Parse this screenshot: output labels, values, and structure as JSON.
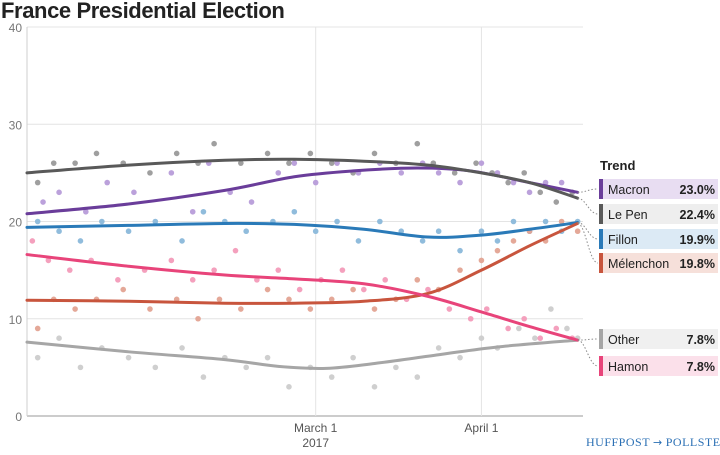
{
  "chart_data": {
    "type": "line",
    "title": "France Presidential Election",
    "ylim": [
      0,
      40
    ],
    "yticks": [
      0,
      10,
      20,
      30,
      40
    ],
    "xlim": [
      "2017-01-06",
      "2017-04-20"
    ],
    "xticks": [
      {
        "date": "2017-03-01",
        "label": "March 1",
        "sublabel": "2017"
      },
      {
        "date": "2017-04-01",
        "label": "April 1",
        "sublabel": ""
      }
    ],
    "legend_title": "Trend",
    "legend_position": "right",
    "series": [
      {
        "name": "Macron",
        "color": "#6a3d9a",
        "dot_color": "#b79cd9",
        "label_bg": "#e8ddf2",
        "value_label": "23.0%",
        "trend": [
          [
            "2017-01-06",
            20.8
          ],
          [
            "2017-01-25",
            21.8
          ],
          [
            "2017-02-12",
            23.2
          ],
          [
            "2017-02-25",
            24.6
          ],
          [
            "2017-03-08",
            25.2
          ],
          [
            "2017-03-20",
            25.5
          ],
          [
            "2017-03-30",
            25.2
          ],
          [
            "2017-04-10",
            24.0
          ],
          [
            "2017-04-19",
            23.0
          ]
        ],
        "points": [
          [
            "2017-01-09",
            22
          ],
          [
            "2017-01-12",
            23
          ],
          [
            "2017-01-17",
            21
          ],
          [
            "2017-01-21",
            24
          ],
          [
            "2017-01-26",
            23
          ],
          [
            "2017-02-02",
            25
          ],
          [
            "2017-02-06",
            21
          ],
          [
            "2017-02-09",
            26
          ],
          [
            "2017-02-13",
            23
          ],
          [
            "2017-02-17",
            22
          ],
          [
            "2017-02-22",
            25
          ],
          [
            "2017-02-25",
            26
          ],
          [
            "2017-03-01",
            24
          ],
          [
            "2017-03-05",
            26
          ],
          [
            "2017-03-09",
            25
          ],
          [
            "2017-03-13",
            26
          ],
          [
            "2017-03-17",
            25
          ],
          [
            "2017-03-21",
            26
          ],
          [
            "2017-03-24",
            25
          ],
          [
            "2017-03-28",
            24
          ],
          [
            "2017-04-01",
            26
          ],
          [
            "2017-04-04",
            25
          ],
          [
            "2017-04-07",
            24
          ],
          [
            "2017-04-10",
            23
          ],
          [
            "2017-04-13",
            24
          ],
          [
            "2017-04-16",
            24
          ],
          [
            "2017-04-18",
            23
          ]
        ]
      },
      {
        "name": "Le Pen",
        "color": "#595959",
        "dot_color": "#9a9a9a",
        "label_bg": "#eeeeee",
        "value_label": "22.4%",
        "trend": [
          [
            "2017-01-06",
            25.0
          ],
          [
            "2017-01-25",
            25.8
          ],
          [
            "2017-02-12",
            26.3
          ],
          [
            "2017-02-25",
            26.4
          ],
          [
            "2017-03-10",
            26.2
          ],
          [
            "2017-03-22",
            25.8
          ],
          [
            "2017-04-01",
            25.0
          ],
          [
            "2017-04-10",
            24.0
          ],
          [
            "2017-04-19",
            22.4
          ]
        ],
        "points": [
          [
            "2017-01-08",
            24
          ],
          [
            "2017-01-11",
            26
          ],
          [
            "2017-01-15",
            26
          ],
          [
            "2017-01-19",
            27
          ],
          [
            "2017-01-24",
            26
          ],
          [
            "2017-01-29",
            25
          ],
          [
            "2017-02-03",
            27
          ],
          [
            "2017-02-07",
            26
          ],
          [
            "2017-02-10",
            28
          ],
          [
            "2017-02-15",
            26
          ],
          [
            "2017-02-20",
            27
          ],
          [
            "2017-02-24",
            26
          ],
          [
            "2017-02-28",
            27
          ],
          [
            "2017-03-04",
            26
          ],
          [
            "2017-03-08",
            25
          ],
          [
            "2017-03-12",
            27
          ],
          [
            "2017-03-16",
            26
          ],
          [
            "2017-03-20",
            28
          ],
          [
            "2017-03-23",
            26
          ],
          [
            "2017-03-27",
            25
          ],
          [
            "2017-03-31",
            26
          ],
          [
            "2017-04-03",
            25
          ],
          [
            "2017-04-06",
            24
          ],
          [
            "2017-04-09",
            25
          ],
          [
            "2017-04-12",
            23
          ],
          [
            "2017-04-15",
            22
          ],
          [
            "2017-04-18",
            23
          ]
        ]
      },
      {
        "name": "Fillon",
        "color": "#2a7ab8",
        "dot_color": "#8ab8da",
        "label_bg": "#dceaf5",
        "value_label": "19.9%",
        "trend": [
          [
            "2017-01-06",
            19.4
          ],
          [
            "2017-01-25",
            19.6
          ],
          [
            "2017-02-12",
            19.8
          ],
          [
            "2017-02-25",
            19.7
          ],
          [
            "2017-03-10",
            19.2
          ],
          [
            "2017-03-22",
            18.4
          ],
          [
            "2017-04-01",
            18.6
          ],
          [
            "2017-04-10",
            19.2
          ],
          [
            "2017-04-19",
            19.9
          ]
        ],
        "points": [
          [
            "2017-01-08",
            20
          ],
          [
            "2017-01-12",
            19
          ],
          [
            "2017-01-16",
            18
          ],
          [
            "2017-01-20",
            20
          ],
          [
            "2017-01-25",
            19
          ],
          [
            "2017-01-30",
            20
          ],
          [
            "2017-02-04",
            18
          ],
          [
            "2017-02-08",
            21
          ],
          [
            "2017-02-12",
            20
          ],
          [
            "2017-02-16",
            19
          ],
          [
            "2017-02-21",
            20
          ],
          [
            "2017-02-25",
            21
          ],
          [
            "2017-03-01",
            19
          ],
          [
            "2017-03-05",
            20
          ],
          [
            "2017-03-09",
            18
          ],
          [
            "2017-03-13",
            20
          ],
          [
            "2017-03-17",
            19
          ],
          [
            "2017-03-21",
            18
          ],
          [
            "2017-03-24",
            19
          ],
          [
            "2017-03-28",
            17
          ],
          [
            "2017-04-01",
            19
          ],
          [
            "2017-04-04",
            18
          ],
          [
            "2017-04-07",
            20
          ],
          [
            "2017-04-10",
            19
          ],
          [
            "2017-04-13",
            20
          ],
          [
            "2017-04-16",
            19
          ],
          [
            "2017-04-19",
            20
          ]
        ]
      },
      {
        "name": "Mélenchon",
        "color": "#c8553d",
        "dot_color": "#e3a392",
        "label_bg": "#f6e0da",
        "value_label": "19.8%",
        "trend": [
          [
            "2017-01-06",
            11.9
          ],
          [
            "2017-01-25",
            11.8
          ],
          [
            "2017-02-12",
            11.6
          ],
          [
            "2017-02-25",
            11.6
          ],
          [
            "2017-03-10",
            11.8
          ],
          [
            "2017-03-22",
            12.6
          ],
          [
            "2017-04-01",
            15.0
          ],
          [
            "2017-04-10",
            17.5
          ],
          [
            "2017-04-19",
            19.8
          ]
        ],
        "points": [
          [
            "2017-01-08",
            9
          ],
          [
            "2017-01-11",
            12
          ],
          [
            "2017-01-15",
            11
          ],
          [
            "2017-01-19",
            12
          ],
          [
            "2017-01-24",
            13
          ],
          [
            "2017-01-29",
            11
          ],
          [
            "2017-02-03",
            12
          ],
          [
            "2017-02-07",
            10
          ],
          [
            "2017-02-11",
            12
          ],
          [
            "2017-02-15",
            11
          ],
          [
            "2017-02-20",
            13
          ],
          [
            "2017-02-24",
            12
          ],
          [
            "2017-02-28",
            11
          ],
          [
            "2017-03-04",
            12
          ],
          [
            "2017-03-08",
            13
          ],
          [
            "2017-03-12",
            11
          ],
          [
            "2017-03-16",
            12
          ],
          [
            "2017-03-20",
            14
          ],
          [
            "2017-03-24",
            13
          ],
          [
            "2017-03-28",
            15
          ],
          [
            "2017-04-01",
            16
          ],
          [
            "2017-04-04",
            17
          ],
          [
            "2017-04-07",
            18
          ],
          [
            "2017-04-10",
            19
          ],
          [
            "2017-04-13",
            18
          ],
          [
            "2017-04-16",
            20
          ],
          [
            "2017-04-19",
            19
          ]
        ]
      },
      {
        "name": "Other",
        "color": "#a6a6a6",
        "dot_color": "#cccccc",
        "label_bg": "#f0f0f0",
        "value_label": "7.8%",
        "trend": [
          [
            "2017-01-06",
            7.6
          ],
          [
            "2017-01-25",
            6.6
          ],
          [
            "2017-02-12",
            5.8
          ],
          [
            "2017-02-22",
            5.1
          ],
          [
            "2017-03-03",
            4.9
          ],
          [
            "2017-03-12",
            5.4
          ],
          [
            "2017-03-24",
            6.3
          ],
          [
            "2017-04-04",
            7.1
          ],
          [
            "2017-04-19",
            7.8
          ]
        ],
        "points": [
          [
            "2017-01-08",
            6
          ],
          [
            "2017-01-12",
            8
          ],
          [
            "2017-01-16",
            5
          ],
          [
            "2017-01-20",
            7
          ],
          [
            "2017-01-25",
            6
          ],
          [
            "2017-01-30",
            5
          ],
          [
            "2017-02-04",
            7
          ],
          [
            "2017-02-08",
            4
          ],
          [
            "2017-02-12",
            6
          ],
          [
            "2017-02-16",
            5
          ],
          [
            "2017-02-20",
            6
          ],
          [
            "2017-02-24",
            3
          ],
          [
            "2017-02-28",
            5
          ],
          [
            "2017-03-04",
            4
          ],
          [
            "2017-03-08",
            6
          ],
          [
            "2017-03-12",
            3
          ],
          [
            "2017-03-16",
            5
          ],
          [
            "2017-03-20",
            4
          ],
          [
            "2017-03-24",
            7
          ],
          [
            "2017-03-28",
            6
          ],
          [
            "2017-04-01",
            8
          ],
          [
            "2017-04-04",
            7
          ],
          [
            "2017-04-08",
            9
          ],
          [
            "2017-04-11",
            8
          ],
          [
            "2017-04-14",
            11
          ],
          [
            "2017-04-17",
            9
          ],
          [
            "2017-04-19",
            8
          ]
        ]
      },
      {
        "name": "Hamon",
        "color": "#e8447a",
        "dot_color": "#f39bb9",
        "label_bg": "#fbe0ea",
        "value_label": "7.8%",
        "trend": [
          [
            "2017-01-06",
            16.6
          ],
          [
            "2017-01-25",
            15.4
          ],
          [
            "2017-02-12",
            14.5
          ],
          [
            "2017-02-25",
            14.1
          ],
          [
            "2017-03-10",
            13.6
          ],
          [
            "2017-03-22",
            12.3
          ],
          [
            "2017-04-01",
            10.7
          ],
          [
            "2017-04-10",
            9.2
          ],
          [
            "2017-04-19",
            7.8
          ]
        ],
        "points": [
          [
            "2017-01-07",
            18
          ],
          [
            "2017-01-10",
            16
          ],
          [
            "2017-01-14",
            15
          ],
          [
            "2017-01-18",
            16
          ],
          [
            "2017-01-23",
            14
          ],
          [
            "2017-01-28",
            15
          ],
          [
            "2017-02-02",
            16
          ],
          [
            "2017-02-06",
            14
          ],
          [
            "2017-02-10",
            15
          ],
          [
            "2017-02-14",
            17
          ],
          [
            "2017-02-18",
            14
          ],
          [
            "2017-02-22",
            15
          ],
          [
            "2017-02-26",
            13
          ],
          [
            "2017-03-02",
            14
          ],
          [
            "2017-03-06",
            15
          ],
          [
            "2017-03-10",
            13
          ],
          [
            "2017-03-14",
            14
          ],
          [
            "2017-03-18",
            12
          ],
          [
            "2017-03-22",
            13
          ],
          [
            "2017-03-26",
            11
          ],
          [
            "2017-03-30",
            10
          ],
          [
            "2017-04-02",
            11
          ],
          [
            "2017-04-06",
            9
          ],
          [
            "2017-04-09",
            10
          ],
          [
            "2017-04-12",
            8
          ],
          [
            "2017-04-15",
            9
          ],
          [
            "2017-04-18",
            8
          ]
        ]
      }
    ]
  },
  "brand": {
    "left": "HUFFPOST",
    "sep": "→",
    "right": "POLLSTER"
  }
}
